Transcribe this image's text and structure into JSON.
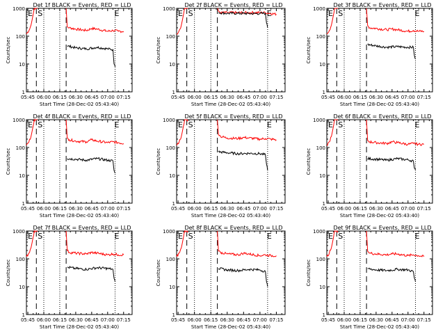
{
  "colors": {
    "background": "#ffffff",
    "axes": "#000000",
    "events": "#000000",
    "lld": "#ff0000"
  },
  "shared": {
    "xlabel": "Start Time (28-Dec-02 05:43:40)",
    "ylabel": "Counts/sec",
    "xticks": [
      "05:45",
      "06:00",
      "06:15",
      "06:30",
      "06:45",
      "07:00",
      "07:15"
    ],
    "yticks": [
      "1",
      "10",
      "100",
      "1000"
    ],
    "markers": {
      "s": "S",
      "e": "E"
    }
  },
  "panels": [
    {
      "title": "Det 1f BLACK = Events, RED = LLD"
    },
    {
      "title": "Det 2f BLACK = Events, RED = LLD"
    },
    {
      "title": "Det 3f BLACK = Events, RED = LLD"
    },
    {
      "title": "Det 4f BLACK = Events, RED = LLD"
    },
    {
      "title": "Det 5f BLACK = Events, RED = LLD"
    },
    {
      "title": "Det 6f BLACK = Events, RED = LLD"
    },
    {
      "title": "Det 7f BLACK = Events, RED = LLD"
    },
    {
      "title": "Det 8f BLACK = Events, RED = LLD"
    },
    {
      "title": "Det 9f BLACK = Events, RED = LLD"
    }
  ],
  "chart_data": [
    {
      "type": "line",
      "title": "Det 1f BLACK = Events, RED = LLD",
      "xlabel": "Start Time (28-Dec-02 05:43:40)",
      "ylabel": "Counts/sec",
      "yscale": "log",
      "ylim": [
        1,
        1000
      ],
      "xlim": [
        "05:43:40",
        "07:23"
      ],
      "vlines_dashed": [
        "05:53",
        "06:21"
      ],
      "vlines_dotted": [
        "06:00",
        "06:15",
        "07:07"
      ],
      "markers": {
        "S": "05:53",
        "E": "07:07"
      },
      "series": [
        {
          "color": "red",
          "x": [
            "05:43:40",
            "05:46",
            "05:48",
            "05:50",
            "05:51",
            "05:52",
            "05:53",
            "05:54",
            "05:55",
            "06:00",
            "06:10",
            "06:20",
            "06:21",
            "06:22",
            "06:24",
            "06:30",
            "06:40",
            "06:45",
            "06:50",
            "07:00",
            "07:05",
            "07:10",
            "07:15"
          ],
          "y": [
            120,
            160,
            250,
            600,
            1000,
            1000,
            1000,
            1000,
            null,
            null,
            null,
            null,
            1000,
            220,
            200,
            180,
            160,
            190,
            180,
            150,
            160,
            150,
            150
          ]
        },
        {
          "color": "black",
          "x": [
            "06:22",
            "06:30",
            "06:40",
            "06:50",
            "07:00",
            "07:05",
            "07:06",
            "07:07"
          ],
          "y": [
            45,
            38,
            35,
            40,
            35,
            33,
            10,
            8
          ]
        }
      ]
    },
    {
      "type": "line",
      "title": "Det 2f BLACK = Events, RED = LLD",
      "xlabel": "Start Time (28-Dec-02 05:43:40)",
      "ylabel": "Counts/sec",
      "yscale": "log",
      "ylim": [
        1,
        1000
      ],
      "xlim": [
        "05:43:40",
        "07:23"
      ],
      "vlines_dashed": [
        "05:53",
        "06:21"
      ],
      "vlines_dotted": [
        "06:00",
        "06:15",
        "07:07"
      ],
      "markers": {
        "S": "05:53",
        "E": "07:07"
      },
      "series": [
        {
          "color": "red",
          "x": [
            "05:43:40",
            "05:46",
            "05:48",
            "05:50",
            "05:51",
            "05:52",
            "05:53",
            "05:54",
            "05:55",
            "06:00",
            "06:10",
            "06:20",
            "06:21",
            "06:22",
            "06:24",
            "06:30",
            "06:40",
            "06:45",
            "06:50",
            "07:00",
            "07:05",
            "07:10",
            "07:15"
          ],
          "y": [
            120,
            160,
            250,
            600,
            1000,
            1000,
            1000,
            1000,
            null,
            null,
            null,
            null,
            1000,
            800,
            700,
            700,
            700,
            700,
            700,
            700,
            700,
            650,
            620
          ]
        },
        {
          "color": "black",
          "x": [
            "06:22",
            "06:30",
            "06:40",
            "06:50",
            "07:00",
            "07:05",
            "07:06",
            "07:07"
          ],
          "y": [
            700,
            660,
            660,
            650,
            650,
            660,
            300,
            200
          ]
        }
      ]
    },
    {
      "type": "line",
      "title": "Det 3f BLACK = Events, RED = LLD",
      "xlabel": "Start Time (28-Dec-02 05:43:40)",
      "ylabel": "Counts/sec",
      "yscale": "log",
      "ylim": [
        1,
        1000
      ],
      "xlim": [
        "05:43:40",
        "07:23"
      ],
      "vlines_dashed": [
        "05:53",
        "06:21"
      ],
      "vlines_dotted": [
        "06:00",
        "06:15",
        "07:07"
      ],
      "markers": {
        "S": "05:53",
        "E": "07:07"
      },
      "series": [
        {
          "color": "red",
          "x": [
            "05:43:40",
            "05:46",
            "05:48",
            "05:50",
            "05:51",
            "05:52",
            "05:53",
            "05:54",
            "05:55",
            "06:00",
            "06:10",
            "06:20",
            "06:21",
            "06:22",
            "06:24",
            "06:30",
            "06:40",
            "06:45",
            "06:50",
            "07:00",
            "07:05",
            "07:10",
            "07:15"
          ],
          "y": [
            120,
            160,
            250,
            600,
            1000,
            1000,
            1000,
            1000,
            null,
            null,
            null,
            null,
            1000,
            240,
            200,
            190,
            170,
            180,
            170,
            150,
            160,
            150,
            150
          ]
        },
        {
          "color": "black",
          "x": [
            "06:22",
            "06:30",
            "06:40",
            "06:50",
            "07:00",
            "07:05",
            "07:06",
            "07:07"
          ],
          "y": [
            50,
            45,
            40,
            42,
            40,
            40,
            20,
            15
          ]
        }
      ]
    },
    {
      "type": "line",
      "title": "Det 4f BLACK = Events, RED = LLD",
      "xlabel": "Start Time (28-Dec-02 05:43:40)",
      "ylabel": "Counts/sec",
      "yscale": "log",
      "ylim": [
        1,
        1000
      ],
      "xlim": [
        "05:43:40",
        "07:23"
      ],
      "vlines_dashed": [
        "05:53",
        "06:21"
      ],
      "vlines_dotted": [
        "06:00",
        "06:15",
        "07:07"
      ],
      "markers": {
        "S": "05:53",
        "E": "07:07"
      },
      "series": [
        {
          "color": "red",
          "x": [
            "05:43:40",
            "05:46",
            "05:48",
            "05:50",
            "05:51",
            "05:52",
            "05:53",
            "05:54",
            "05:55",
            "06:00",
            "06:10",
            "06:20",
            "06:21",
            "06:22",
            "06:24",
            "06:30",
            "06:40",
            "06:45",
            "06:50",
            "07:00",
            "07:05",
            "07:10",
            "07:15"
          ],
          "y": [
            120,
            160,
            250,
            600,
            1000,
            1000,
            1000,
            1000,
            null,
            null,
            null,
            null,
            1000,
            220,
            190,
            170,
            160,
            190,
            170,
            150,
            160,
            150,
            140
          ]
        },
        {
          "color": "black",
          "x": [
            "06:22",
            "06:30",
            "06:40",
            "06:50",
            "07:00",
            "07:05",
            "07:06",
            "07:07"
          ],
          "y": [
            40,
            38,
            35,
            40,
            35,
            33,
            15,
            12
          ]
        }
      ]
    },
    {
      "type": "line",
      "title": "Det 5f BLACK = Events, RED = LLD",
      "xlabel": "Start Time (28-Dec-02 05:43:40)",
      "ylabel": "Counts/sec",
      "yscale": "log",
      "ylim": [
        1,
        1000
      ],
      "xlim": [
        "05:43:40",
        "07:23"
      ],
      "vlines_dashed": [
        "05:53",
        "06:21"
      ],
      "vlines_dotted": [
        "06:00",
        "06:15",
        "07:07"
      ],
      "markers": {
        "S": "05:53",
        "E": "07:07"
      },
      "series": [
        {
          "color": "red",
          "x": [
            "05:43:40",
            "05:46",
            "05:48",
            "05:50",
            "05:51",
            "05:52",
            "05:53",
            "05:54",
            "05:55",
            "06:00",
            "06:10",
            "06:20",
            "06:21",
            "06:22",
            "06:24",
            "06:30",
            "06:40",
            "06:45",
            "06:50",
            "07:00",
            "07:05",
            "07:10",
            "07:15"
          ],
          "y": [
            120,
            160,
            250,
            600,
            1000,
            1000,
            1000,
            1000,
            null,
            null,
            null,
            null,
            1000,
            300,
            250,
            220,
            210,
            230,
            220,
            200,
            210,
            200,
            190
          ]
        },
        {
          "color": "black",
          "x": [
            "06:22",
            "06:30",
            "06:40",
            "06:50",
            "07:00",
            "07:05",
            "07:06",
            "07:07"
          ],
          "y": [
            70,
            65,
            60,
            62,
            60,
            55,
            25,
            15
          ]
        }
      ]
    },
    {
      "type": "line",
      "title": "Det 6f BLACK = Events, RED = LLD",
      "xlabel": "Start Time (28-Dec-02 05:43:40)",
      "ylabel": "Counts/sec",
      "yscale": "log",
      "ylim": [
        1,
        1000
      ],
      "xlim": [
        "05:43:40",
        "07:23"
      ],
      "vlines_dashed": [
        "05:53",
        "06:21"
      ],
      "vlines_dotted": [
        "06:00",
        "06:15",
        "07:07"
      ],
      "markers": {
        "S": "05:53",
        "E": "07:07"
      },
      "series": [
        {
          "color": "red",
          "x": [
            "05:43:40",
            "05:46",
            "05:48",
            "05:50",
            "05:51",
            "05:52",
            "05:53",
            "05:54",
            "05:55",
            "06:00",
            "06:10",
            "06:20",
            "06:21",
            "06:22",
            "06:24",
            "06:30",
            "06:40",
            "06:45",
            "06:50",
            "07:00",
            "07:05",
            "07:10",
            "07:15"
          ],
          "y": [
            120,
            160,
            250,
            600,
            1000,
            1000,
            1000,
            1000,
            null,
            null,
            null,
            null,
            1000,
            180,
            160,
            150,
            140,
            160,
            150,
            130,
            140,
            130,
            130
          ]
        },
        {
          "color": "black",
          "x": [
            "06:22",
            "06:30",
            "06:40",
            "06:50",
            "07:00",
            "07:05",
            "07:06",
            "07:07"
          ],
          "y": [
            40,
            38,
            35,
            40,
            36,
            33,
            18,
            15
          ]
        }
      ]
    },
    {
      "type": "line",
      "title": "Det 7f BLACK = Events, RED = LLD",
      "xlabel": "Start Time (28-Dec-02 05:43:40)",
      "ylabel": "Counts/sec",
      "yscale": "log",
      "ylim": [
        1,
        1000
      ],
      "xlim": [
        "05:43:40",
        "07:23"
      ],
      "vlines_dashed": [
        "05:53",
        "06:21"
      ],
      "vlines_dotted": [
        "06:00",
        "06:15",
        "07:07"
      ],
      "markers": {
        "S": "05:53",
        "E": "07:07"
      },
      "series": [
        {
          "color": "red",
          "x": [
            "05:43:40",
            "05:46",
            "05:48",
            "05:50",
            "05:51",
            "05:52",
            "05:53",
            "05:54",
            "05:55",
            "06:00",
            "06:10",
            "06:20",
            "06:21",
            "06:22",
            "06:24",
            "06:30",
            "06:40",
            "06:45",
            "06:50",
            "07:00",
            "07:05",
            "07:10",
            "07:15"
          ],
          "y": [
            120,
            160,
            250,
            600,
            1000,
            1000,
            1000,
            1000,
            null,
            null,
            null,
            null,
            1000,
            200,
            170,
            160,
            150,
            170,
            160,
            140,
            150,
            140,
            140
          ]
        },
        {
          "color": "black",
          "x": [
            "06:22",
            "06:30",
            "06:40",
            "06:50",
            "07:00",
            "07:05",
            "07:06",
            "07:07"
          ],
          "y": [
            50,
            45,
            42,
            48,
            45,
            42,
            20,
            15
          ]
        }
      ]
    },
    {
      "type": "line",
      "title": "Det 8f BLACK = Events, RED = LLD",
      "xlabel": "Start Time (28-Dec-02 05:43:40)",
      "ylabel": "Counts/sec",
      "yscale": "log",
      "ylim": [
        1,
        1000
      ],
      "xlim": [
        "05:43:40",
        "07:23"
      ],
      "vlines_dashed": [
        "05:53",
        "06:21"
      ],
      "vlines_dotted": [
        "06:00",
        "06:15",
        "07:07"
      ],
      "markers": {
        "S": "05:53",
        "E": "07:07"
      },
      "series": [
        {
          "color": "red",
          "x": [
            "05:43:40",
            "05:46",
            "05:48",
            "05:50",
            "05:51",
            "05:52",
            "05:53",
            "05:54",
            "05:55",
            "06:00",
            "06:10",
            "06:20",
            "06:21",
            "06:22",
            "06:24",
            "06:30",
            "06:40",
            "06:45",
            "06:50",
            "07:00",
            "07:05",
            "07:10",
            "07:15"
          ],
          "y": [
            120,
            160,
            250,
            600,
            1000,
            1000,
            1000,
            1000,
            null,
            null,
            null,
            null,
            1000,
            190,
            170,
            150,
            140,
            160,
            150,
            130,
            140,
            130,
            130
          ]
        },
        {
          "color": "black",
          "x": [
            "06:22",
            "06:30",
            "06:40",
            "06:50",
            "07:00",
            "07:05",
            "07:06",
            "07:07"
          ],
          "y": [
            45,
            40,
            38,
            42,
            40,
            35,
            15,
            10
          ]
        }
      ]
    },
    {
      "type": "line",
      "title": "Det 9f BLACK = Events, RED = LLD",
      "xlabel": "Start Time (28-Dec-02 05:43:40)",
      "ylabel": "Counts/sec",
      "yscale": "log",
      "ylim": [
        1,
        1000
      ],
      "xlim": [
        "05:43:40",
        "07:23"
      ],
      "vlines_dashed": [
        "05:53",
        "06:21"
      ],
      "vlines_dotted": [
        "06:00",
        "06:15",
        "07:07"
      ],
      "markers": {
        "S": "05:53",
        "E": "07:07"
      },
      "series": [
        {
          "color": "red",
          "x": [
            "05:43:40",
            "05:46",
            "05:48",
            "05:50",
            "05:51",
            "05:52",
            "05:53",
            "05:54",
            "05:55",
            "06:00",
            "06:10",
            "06:20",
            "06:21",
            "06:22",
            "06:24",
            "06:30",
            "06:40",
            "06:45",
            "06:50",
            "07:00",
            "07:05",
            "07:10",
            "07:15"
          ],
          "y": [
            120,
            160,
            250,
            600,
            1000,
            1000,
            1000,
            1000,
            null,
            null,
            null,
            null,
            1000,
            190,
            160,
            150,
            140,
            150,
            150,
            130,
            140,
            130,
            120
          ]
        },
        {
          "color": "black",
          "x": [
            "06:22",
            "06:30",
            "06:40",
            "06:50",
            "07:00",
            "07:05",
            "07:06",
            "07:07"
          ],
          "y": [
            45,
            40,
            38,
            42,
            40,
            35,
            20,
            15
          ]
        }
      ]
    }
  ]
}
